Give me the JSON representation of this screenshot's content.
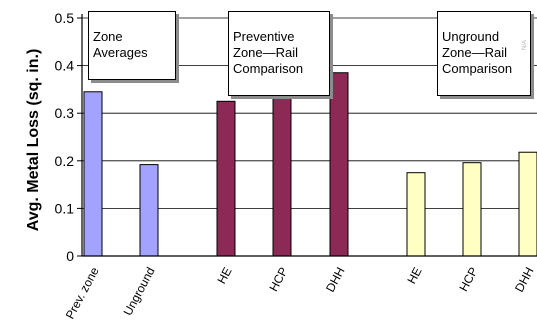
{
  "chart_data": {
    "type": "bar",
    "categories": [
      "Prev. zone",
      "Unground",
      "HE",
      "HCP",
      "DHH",
      "HE",
      "HCP",
      "DHH"
    ],
    "groups": [
      {
        "label": "Zone Averages",
        "indices": [
          0,
          1
        ],
        "color": "#a3a3ff"
      },
      {
        "label": "Preventive Zone—Rail Comparison",
        "indices": [
          2,
          3,
          4
        ],
        "color": "#8c2a55"
      },
      {
        "label": "Unground Zone—Rail Comparison",
        "indices": [
          5,
          6,
          7
        ],
        "color": "#ffffc4"
      }
    ],
    "values": [
      0.345,
      0.192,
      0.325,
      0.338,
      0.385,
      0.175,
      0.196,
      0.218
    ],
    "ylabel": "Avg.  Metal Loss (sq. in.)",
    "xlabel": "",
    "ylim": [
      0,
      0.5
    ],
    "yticks": [
      "0",
      "0.1",
      "0.2",
      "0.3",
      "0.4",
      "0.5"
    ],
    "ytick_values": [
      0,
      0.1,
      0.2,
      0.3,
      0.4,
      0.5
    ],
    "grid": true
  },
  "annotations": [
    {
      "text": "Zone\nAverages"
    },
    {
      "text": "Preventive\nZone—Rail\nComparison"
    },
    {
      "text": "Unground\nZone—Rail\nComparison"
    }
  ],
  "watermark": "N/A"
}
